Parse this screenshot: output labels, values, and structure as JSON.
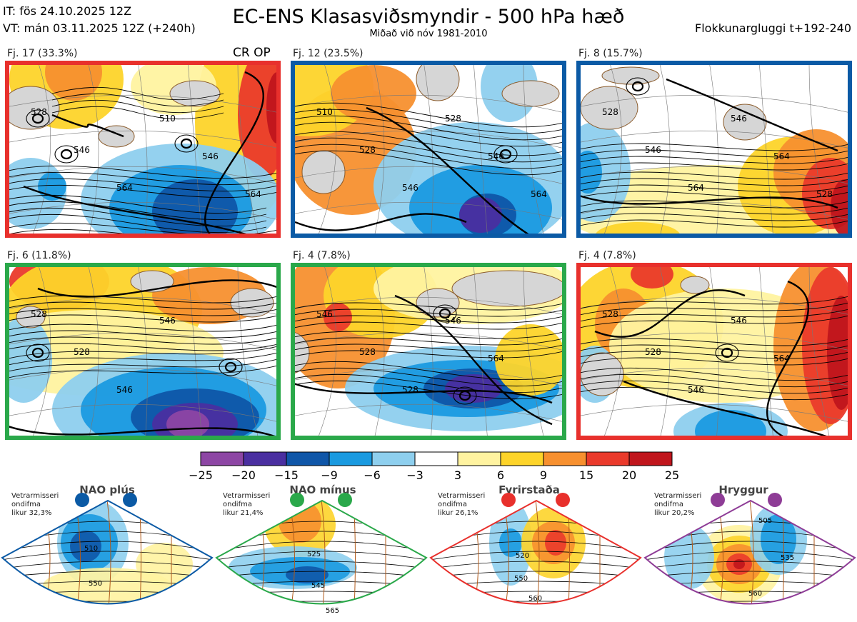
{
  "header": {
    "it_line": "IT: fös 24.10.2025 12Z",
    "vt_line": "VT: mán 03.11.2025 12Z  (+240h)",
    "title": "EC-ENS Klasasviðsmyndir - 500 hPa hæð",
    "subtitle": "Miðað við nóv 1981-2010",
    "window": "Flokkunargluggi t+192-240"
  },
  "cr_op_label": "CR OP",
  "colors": {
    "red": "#e8302c",
    "blue": "#0b5aa5",
    "green": "#2aa84a",
    "purple": "#8e3c96",
    "pink": "#ee82ee"
  },
  "clusters": [
    {
      "label": "Fj. 17 (33.3%)",
      "regime": "red",
      "contours": [
        "528",
        "546",
        "564",
        "510",
        "546",
        "564"
      ]
    },
    {
      "label": "Fj. 12 (23.5%)",
      "regime": "blue",
      "contours": [
        "510",
        "528",
        "546",
        "528",
        "546",
        "564"
      ]
    },
    {
      "label": "Fj. 8 (15.7%)",
      "regime": "blue",
      "contours": [
        "528",
        "546",
        "564",
        "546",
        "564",
        "528"
      ]
    },
    {
      "label": "Fj. 6 (11.8%)",
      "regime": "green",
      "contours": [
        "528",
        "528",
        "546",
        "546"
      ]
    },
    {
      "label": "Fj. 4 (7.8%)",
      "regime": "green",
      "contours": [
        "546",
        "528",
        "528",
        "546",
        "564"
      ]
    },
    {
      "label": "Fj. 4 (7.8%)",
      "regime": "red",
      "contours": [
        "528",
        "528",
        "546",
        "546",
        "564"
      ]
    }
  ],
  "colorbar": {
    "ticks": [
      "−25",
      "−20",
      "−15",
      "−9",
      "−6",
      "−3",
      "3",
      "6",
      "9",
      "15",
      "20",
      "25"
    ],
    "colors": [
      "#8d46a4",
      "#4a2fa0",
      "#0f56a8",
      "#1a9ae0",
      "#8ecfee",
      "#ffffff",
      "#fff3a0",
      "#fdd42a",
      "#f7902f",
      "#ea3a2b",
      "#c0151c"
    ]
  },
  "regimes": [
    {
      "name": "NAO plús",
      "color": "blue",
      "note": [
        "Vetrarmisseri",
        "ondifma",
        "likur 32,3%"
      ],
      "labels": [
        "510",
        "550"
      ]
    },
    {
      "name": "NAO mínus",
      "color": "green",
      "note": [
        "Vetrarmisseri",
        "ondifma",
        "likur 21,4%"
      ],
      "labels": [
        "525",
        "545",
        "565"
      ]
    },
    {
      "name": "Fyrirstaða",
      "color": "red",
      "note": [
        "Vetrarmisseri",
        "ondifma",
        "likur 26,1%"
      ],
      "labels": [
        "520",
        "550",
        "560"
      ]
    },
    {
      "name": "Hryggur",
      "color": "purple",
      "note": [
        "Vetrarmisseri",
        "ondifma",
        "likur 20,2%"
      ],
      "labels": [
        "505",
        "535",
        "560"
      ]
    }
  ]
}
